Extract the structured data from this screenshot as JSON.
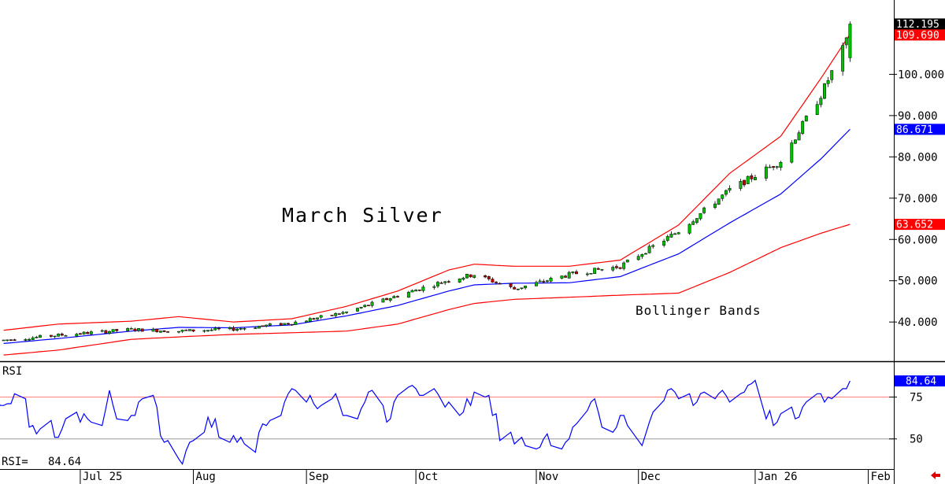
{
  "chart_data": [
    {
      "type": "candlestick",
      "annotations": {
        "title": "March Silver",
        "bands_label": "Bollinger Bands"
      },
      "ylim": [
        30.5,
        118
      ],
      "y_ticks": [
        40,
        50,
        60,
        70,
        80,
        90,
        100
      ],
      "y_tick_labels": [
        "40.000",
        "50.000",
        "60.000",
        "70.000",
        "80.000",
        "90.000",
        "100.000"
      ],
      "price_tags": [
        {
          "label": "112.195",
          "value": 112.195,
          "color": "#000000"
        },
        {
          "label": "109.690",
          "value": 109.69,
          "color": "#ff0000"
        },
        {
          "label": "86.671",
          "value": 86.671,
          "color": "#0000ff"
        },
        {
          "label": "63.652",
          "value": 63.652,
          "color": "#ff0000"
        }
      ],
      "colors": {
        "up": "#00c000",
        "down": "#c00000",
        "upper_band": "#ff0000",
        "lower_band": "#ff0000",
        "middle_band": "#0000ff",
        "axis": "#000000"
      },
      "x_labels": [
        {
          "label": "Jul 25",
          "date": "2025-07-01"
        },
        {
          "label": "Aug",
          "date": "2025-08-01"
        },
        {
          "label": "Sep",
          "date": "2025-09-01"
        },
        {
          "label": "Oct",
          "date": "2025-10-01"
        },
        {
          "label": "Nov",
          "date": "2025-11-03"
        },
        {
          "label": "Dec",
          "date": "2025-12-01"
        },
        {
          "label": "Jan 26",
          "date": "2026-01-02"
        },
        {
          "label": "Feb",
          "date": "2026-02-02"
        }
      ],
      "x_range": [
        "2025-06-09",
        "2026-02-09"
      ],
      "anchors": [
        {
          "date": "2025-06-10",
          "close": 35.6,
          "upper": 38.0,
          "middle": 34.8,
          "lower": 32.0
        },
        {
          "date": "2025-06-25",
          "close": 36.8,
          "upper": 39.5,
          "middle": 36.0,
          "lower": 33.2
        },
        {
          "date": "2025-07-15",
          "close": 38.2,
          "upper": 40.2,
          "middle": 37.8,
          "lower": 35.8
        },
        {
          "date": "2025-07-28",
          "close": 37.8,
          "upper": 41.3,
          "middle": 38.7,
          "lower": 36.4
        },
        {
          "date": "2025-08-12",
          "close": 38.3,
          "upper": 40.0,
          "middle": 38.6,
          "lower": 37.0
        },
        {
          "date": "2025-08-28",
          "close": 39.8,
          "upper": 40.8,
          "middle": 39.3,
          "lower": 37.4
        },
        {
          "date": "2025-09-12",
          "close": 42.4,
          "upper": 43.8,
          "middle": 41.5,
          "lower": 37.8
        },
        {
          "date": "2025-09-26",
          "close": 46.4,
          "upper": 47.5,
          "middle": 44.0,
          "lower": 39.5
        },
        {
          "date": "2025-10-10",
          "close": 50.2,
          "upper": 52.6,
          "middle": 47.5,
          "lower": 43.0
        },
        {
          "date": "2025-10-17",
          "close": 51.5,
          "upper": 54.0,
          "middle": 49.0,
          "lower": 44.5
        },
        {
          "date": "2025-10-28",
          "close": 48.0,
          "upper": 53.5,
          "middle": 49.4,
          "lower": 45.5
        },
        {
          "date": "2025-11-12",
          "close": 51.5,
          "upper": 53.5,
          "middle": 49.5,
          "lower": 46.0
        },
        {
          "date": "2025-11-26",
          "close": 53.5,
          "upper": 55.0,
          "middle": 51.0,
          "lower": 46.5
        },
        {
          "date": "2025-12-12",
          "close": 62.0,
          "upper": 63.5,
          "middle": 56.5,
          "lower": 47.0
        },
        {
          "date": "2025-12-26",
          "close": 72.0,
          "upper": 76.0,
          "middle": 64.0,
          "lower": 52.0
        },
        {
          "date": "2026-01-09",
          "close": 79.0,
          "upper": 85.0,
          "middle": 71.0,
          "lower": 58.0
        },
        {
          "date": "2026-01-20",
          "close": 95.0,
          "upper": 99.0,
          "middle": 79.5,
          "lower": 61.5
        },
        {
          "date": "2026-01-28",
          "close": 109.69,
          "upper": 109.69,
          "middle": 86.671,
          "lower": 63.652
        }
      ],
      "last_candle": {
        "date": "2026-01-28",
        "open": 104.0,
        "high": 112.8,
        "low": 103.0,
        "close": 112.195
      }
    },
    {
      "type": "line",
      "label": "RSI",
      "value_label": "RSI=   84.64",
      "current": 84.64,
      "current_tag": "84.64",
      "ylim": [
        32,
        95
      ],
      "y_ticks": [
        50,
        75
      ],
      "y_tick_labels": [
        "50",
        "75"
      ],
      "colors": {
        "line": "#0000ff",
        "ref75": "#ff8080",
        "ref50": "#999999"
      },
      "values": [
        68,
        79,
        83,
        78,
        70,
        70,
        71,
        71,
        77,
        74,
        57,
        58,
        53,
        56,
        61,
        51,
        51,
        56,
        62,
        66,
        60,
        65,
        62,
        60,
        58,
        68,
        79,
        70,
        62,
        61,
        64,
        64,
        72,
        74,
        76,
        69,
        52,
        48,
        49,
        38,
        35,
        43,
        48,
        49,
        54,
        63,
        57,
        62,
        51,
        48,
        52,
        48,
        51,
        47,
        42,
        54,
        59,
        58,
        61,
        64,
        72,
        77,
        80,
        79,
        72,
        76,
        71,
        68,
        70,
        74,
        77,
        71,
        64,
        64,
        62,
        68,
        72,
        78,
        79,
        70,
        60,
        62,
        72,
        76,
        81,
        82,
        80,
        76,
        76,
        80,
        77,
        73,
        69,
        72,
        64,
        66,
        74,
        70,
        78,
        75,
        76,
        64,
        65,
        49,
        54,
        47,
        49,
        51,
        46,
        44,
        45,
        50,
        53,
        46,
        44,
        48,
        50,
        57,
        59,
        67,
        72,
        74,
        66,
        57,
        54,
        57,
        64,
        64,
        58,
        49,
        46,
        53,
        60,
        66,
        73,
        79,
        80,
        78,
        74,
        77,
        70,
        72,
        77,
        78,
        74,
        77,
        79,
        76,
        72,
        77,
        78,
        82,
        83,
        85,
        62,
        67,
        58,
        60,
        65,
        69,
        62,
        63,
        69,
        72,
        77,
        77,
        72,
        75,
        74,
        80,
        80,
        84.64
      ]
    }
  ]
}
